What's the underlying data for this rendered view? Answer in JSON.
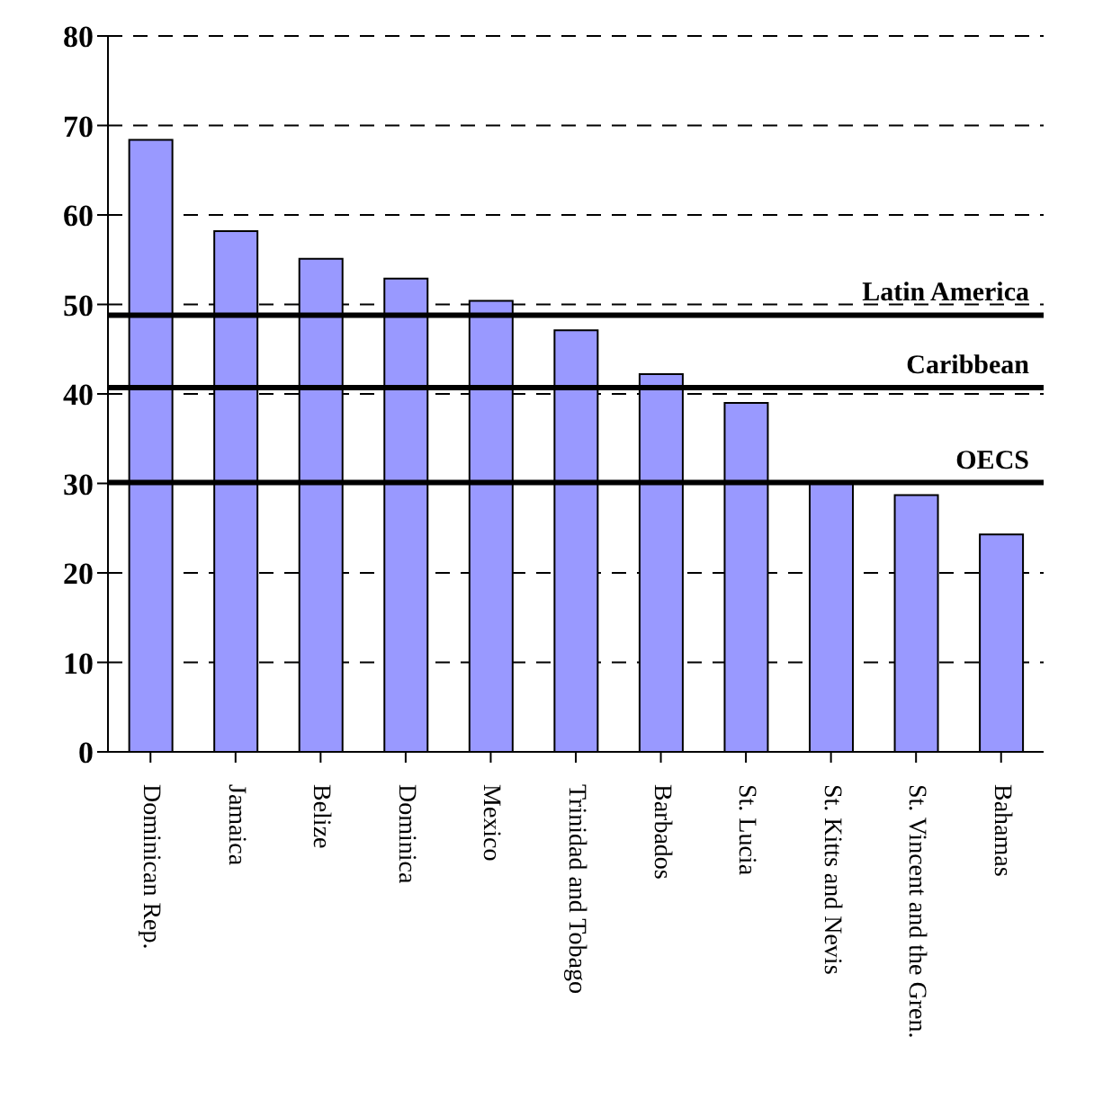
{
  "chart_data": {
    "type": "bar",
    "categories": [
      "Dominican Rep.",
      "Jamaica",
      "Belize",
      "Dominica",
      "Mexico",
      "Trinidad and Tobago",
      "Barbados",
      "St. Lucia",
      "St. Kitts and Nevis",
      "St. Vincent and the Gren.",
      "Bahamas"
    ],
    "values": [
      68.4,
      58.2,
      55.1,
      52.9,
      50.4,
      47.1,
      42.2,
      39.0,
      30.0,
      28.7,
      24.3
    ],
    "color": "#9999ff",
    "ylim": [
      0,
      80
    ],
    "yticks": [
      0,
      10,
      20,
      30,
      40,
      50,
      60,
      70,
      80
    ],
    "grid": "y",
    "ref_lines": [
      {
        "axis": "y",
        "value": 48.8,
        "label": "Latin America",
        "color": "#000000"
      },
      {
        "axis": "y",
        "value": 40.7,
        "label": "Caribbean",
        "color": "#000000"
      },
      {
        "axis": "y",
        "value": 30.1,
        "label": "OECS",
        "color": "#000000"
      }
    ]
  }
}
